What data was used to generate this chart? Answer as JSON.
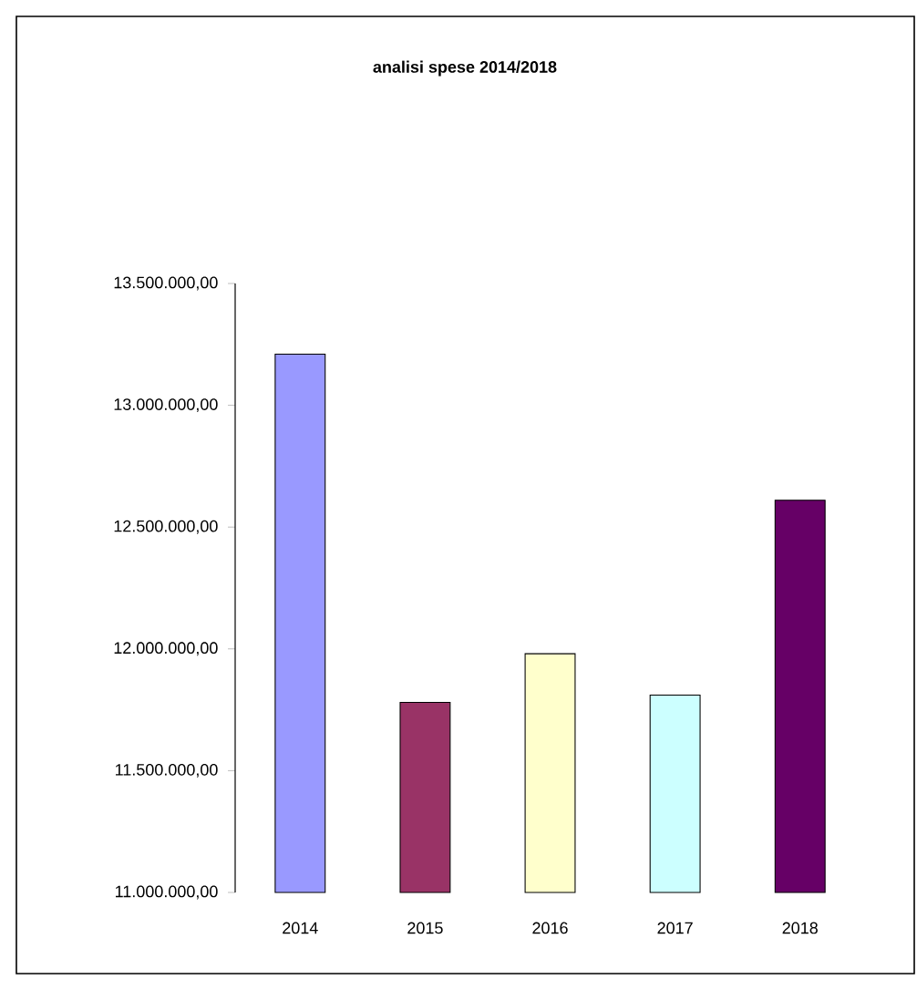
{
  "chart_data": {
    "type": "bar",
    "title": "analisi spese 2014/2018",
    "categories": [
      "2014",
      "2015",
      "2016",
      "2017",
      "2018"
    ],
    "values": [
      13210000,
      11780000,
      11980000,
      11810000,
      12610000
    ],
    "colors": [
      "#9999ff",
      "#993366",
      "#ffffcc",
      "#ccffff",
      "#660066"
    ],
    "ylim": [
      11000000,
      13500000
    ],
    "yticks": [
      {
        "value": 11000000,
        "label": "11.000.000,00"
      },
      {
        "value": 11500000,
        "label": "11.500.000,00"
      },
      {
        "value": 12000000,
        "label": "12.000.000,00"
      },
      {
        "value": 12500000,
        "label": "12.500.000,00"
      },
      {
        "value": 13000000,
        "label": "13.000.000,00"
      },
      {
        "value": 13500000,
        "label": "13.500.000,00"
      }
    ],
    "grid": false
  }
}
